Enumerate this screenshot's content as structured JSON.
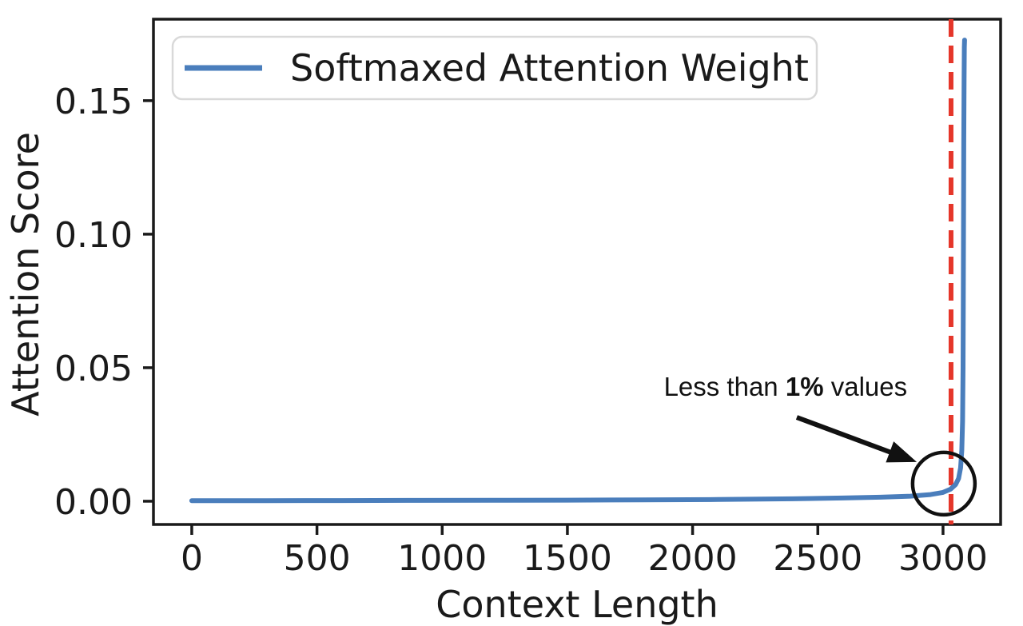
{
  "chart_data": {
    "type": "line",
    "title": "",
    "xlabel": "Context Length",
    "ylabel": "Attention Score",
    "xlim": [
      -153,
      3230
    ],
    "ylim": [
      -0.0087,
      0.1805
    ],
    "grid": false,
    "background_color": "#ffffff",
    "axis_color": "#1a1a1a",
    "x_ticks": [
      {
        "value": 0,
        "label": "0"
      },
      {
        "value": 500,
        "label": "500"
      },
      {
        "value": 1000,
        "label": "1000"
      },
      {
        "value": 1500,
        "label": "1500"
      },
      {
        "value": 2000,
        "label": "2000"
      },
      {
        "value": 2500,
        "label": "2500"
      },
      {
        "value": 3000,
        "label": "3000"
      }
    ],
    "y_ticks": [
      {
        "value": 0.0,
        "label": "0.00"
      },
      {
        "value": 0.05,
        "label": "0.05"
      },
      {
        "value": 0.1,
        "label": "0.10"
      },
      {
        "value": 0.15,
        "label": "0.15"
      }
    ],
    "legend": {
      "position": "upper-left",
      "entries": [
        {
          "label": "Softmaxed Attention Weight",
          "color": "#4a7ebc"
        }
      ]
    },
    "series": [
      {
        "name": "Softmaxed Attention Weight",
        "color": "#4a7ebc",
        "points": [
          [
            0,
            0.0002
          ],
          [
            300,
            0.00022
          ],
          [
            600,
            0.00026
          ],
          [
            900,
            0.0003
          ],
          [
            1200,
            0.00035
          ],
          [
            1500,
            0.0004
          ],
          [
            1800,
            0.0005
          ],
          [
            2100,
            0.00065
          ],
          [
            2400,
            0.0009
          ],
          [
            2600,
            0.0012
          ],
          [
            2750,
            0.0015
          ],
          [
            2870,
            0.0019
          ],
          [
            2950,
            0.0025
          ],
          [
            3000,
            0.0033
          ],
          [
            3030,
            0.0045
          ],
          [
            3050,
            0.0062
          ],
          [
            3062,
            0.0085
          ],
          [
            3070,
            0.0125
          ],
          [
            3075,
            0.019
          ],
          [
            3078,
            0.03
          ],
          [
            3080,
            0.05
          ],
          [
            3081,
            0.075
          ],
          [
            3082,
            0.105
          ],
          [
            3083,
            0.135
          ],
          [
            3084,
            0.158
          ],
          [
            3085,
            0.17
          ],
          [
            3086,
            0.1727
          ]
        ]
      }
    ],
    "vline": {
      "x": 3032,
      "color": "#e5362a",
      "style": "dashed"
    },
    "annotations": {
      "label": {
        "prefix": "Less than ",
        "bold": "1%",
        "suffix": " values",
        "x": 2371,
        "y": 0.0428,
        "color": "#111111"
      },
      "arrow": {
        "from": [
          2416,
          0.0314
        ],
        "to": [
          2895,
          0.0147
        ],
        "color": "#111111"
      },
      "circle": {
        "cx": 3003,
        "cy": 0.0066,
        "radius_px": 39,
        "color": "#111111"
      }
    }
  }
}
